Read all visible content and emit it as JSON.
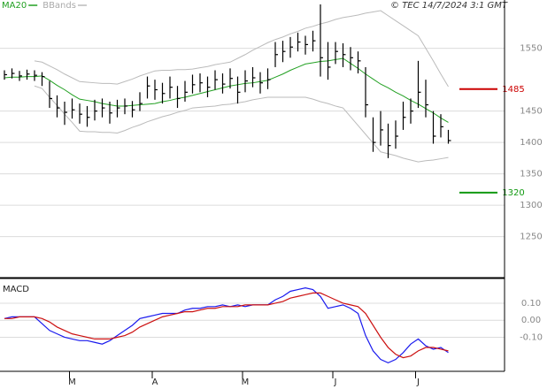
{
  "chart_data": [
    {
      "type": "ohlc",
      "annotation": "© TEC 14/7/2024 3:1 GMT",
      "color": "#000000",
      "high": [
        1515,
        1518,
        1514,
        1516,
        1515,
        1512,
        1498,
        1475,
        1465,
        1470,
        1462,
        1458,
        1468,
        1470,
        1465,
        1468,
        1470,
        1466,
        1480,
        1505,
        1500,
        1495,
        1505,
        1490,
        1498,
        1508,
        1510,
        1505,
        1515,
        1510,
        1518,
        1505,
        1515,
        1520,
        1512,
        1518,
        1560,
        1562,
        1568,
        1575,
        1570,
        1578,
        1620,
        1560,
        1560,
        1558,
        1552,
        1545,
        1520,
        1440,
        1450,
        1430,
        1435,
        1465,
        1470,
        1530,
        1500,
        1450,
        1445,
        1420
      ],
      "low": [
        1500,
        1502,
        1498,
        1500,
        1498,
        1490,
        1455,
        1440,
        1428,
        1438,
        1430,
        1425,
        1435,
        1440,
        1430,
        1440,
        1445,
        1440,
        1450,
        1470,
        1468,
        1462,
        1470,
        1455,
        1465,
        1478,
        1480,
        1472,
        1484,
        1478,
        1486,
        1462,
        1480,
        1488,
        1478,
        1485,
        1520,
        1528,
        1535,
        1545,
        1540,
        1545,
        1505,
        1500,
        1525,
        1520,
        1515,
        1510,
        1440,
        1385,
        1395,
        1375,
        1390,
        1420,
        1430,
        1455,
        1440,
        1398,
        1408,
        1398
      ],
      "close": [
        1508,
        1510,
        1506,
        1509,
        1507,
        1505,
        1470,
        1455,
        1448,
        1452,
        1445,
        1440,
        1450,
        1455,
        1447,
        1455,
        1458,
        1452,
        1462,
        1490,
        1484,
        1478,
        1488,
        1470,
        1480,
        1492,
        1495,
        1488,
        1500,
        1493,
        1502,
        1480,
        1498,
        1503,
        1495,
        1500,
        1540,
        1545,
        1552,
        1560,
        1556,
        1562,
        1535,
        1520,
        1545,
        1540,
        1535,
        1530,
        1460,
        1400,
        1420,
        1395,
        1410,
        1440,
        1450,
        1480,
        1460,
        1410,
        1425,
        1403
      ],
      "series": [
        {
          "name": "MA20",
          "color": "#22a022",
          "values": [
            1503,
            1504,
            1504,
            1505,
            1505,
            1506,
            1499,
            1491,
            1484,
            1476,
            1469,
            1467,
            1465,
            1462,
            1460,
            1458,
            1458,
            1459,
            1460,
            1461,
            1462,
            1465,
            1467,
            1470,
            1472,
            1475,
            1478,
            1481,
            1484,
            1487,
            1490,
            1492,
            1494,
            1495,
            1497,
            1499,
            1504,
            1509,
            1515,
            1520,
            1525,
            1527,
            1529,
            1530,
            1532,
            1534,
            1526,
            1518,
            1509,
            1501,
            1493,
            1487,
            1480,
            1474,
            1467,
            1461,
            1454,
            1447,
            1439,
            1432
          ]
        },
        {
          "name": "BBands",
          "color": "#bbbbbb",
          "upper": [
            null,
            null,
            null,
            null,
            1530,
            1528,
            1522,
            1516,
            1509,
            1503,
            1497,
            1496,
            1495,
            1494,
            1494,
            1493,
            1497,
            1501,
            1506,
            1510,
            1514,
            1515,
            1515,
            1516,
            1516,
            1517,
            1519,
            1521,
            1524,
            1526,
            1528,
            1534,
            1540,
            1547,
            1553,
            1559,
            1564,
            1568,
            1573,
            1577,
            1582,
            1585,
            1589,
            1592,
            1596,
            1599,
            1601,
            1603,
            1606,
            1608,
            1610,
            1602,
            1594,
            1586,
            1578,
            1570,
            1550,
            1530,
            1509,
            1489
          ],
          "lower": [
            null,
            null,
            null,
            null,
            1490,
            1486,
            1472,
            1459,
            1445,
            1432,
            1418,
            1417,
            1417,
            1416,
            1416,
            1415,
            1419,
            1424,
            1428,
            1433,
            1437,
            1441,
            1444,
            1448,
            1451,
            1455,
            1456,
            1457,
            1458,
            1460,
            1461,
            1463,
            1465,
            1468,
            1470,
            1472,
            1472,
            1472,
            1472,
            1472,
            1472,
            1469,
            1465,
            1462,
            1458,
            1455,
            1441,
            1427,
            1413,
            1399,
            1385,
            1382,
            1379,
            1375,
            1372,
            1369,
            1371,
            1372,
            1374,
            1376
          ]
        }
      ],
      "levels": [
        {
          "value": 1485,
          "color": "#cc0000"
        },
        {
          "value": 1320,
          "color": "#119911"
        }
      ],
      "ylim": [
        1186,
        1627
      ],
      "yticks": [
        1250,
        1300,
        1350,
        1400,
        1450,
        1550
      ],
      "grid": true
    },
    {
      "type": "line",
      "title": "MACD",
      "categories": [
        null,
        null,
        null,
        null,
        null,
        null,
        null,
        null,
        null,
        "M",
        null,
        null,
        null,
        null,
        null,
        null,
        null,
        null,
        null,
        null,
        "A",
        null,
        null,
        null,
        null,
        null,
        null,
        null,
        null,
        null,
        null,
        null,
        "M",
        null,
        null,
        null,
        null,
        null,
        null,
        null,
        null,
        null,
        null,
        null,
        "J",
        null,
        null,
        null,
        null,
        null,
        null,
        null,
        null,
        null,
        null,
        "J",
        null,
        null,
        null,
        null
      ],
      "series": [
        {
          "color": "#1a1aee",
          "values": [
            0.01,
            0.02,
            0.02,
            0.02,
            0.02,
            -0.02,
            -0.06,
            -0.08,
            -0.1,
            -0.11,
            -0.12,
            -0.12,
            -0.13,
            -0.14,
            -0.12,
            -0.09,
            -0.06,
            -0.03,
            0.01,
            0.02,
            0.03,
            0.04,
            0.04,
            0.04,
            0.06,
            0.07,
            0.07,
            0.08,
            0.08,
            0.09,
            0.08,
            0.09,
            0.08,
            0.09,
            0.09,
            0.09,
            0.12,
            0.14,
            0.17,
            0.18,
            0.19,
            0.18,
            0.14,
            0.07,
            0.08,
            0.09,
            0.07,
            0.04,
            -0.09,
            -0.18,
            -0.23,
            -0.25,
            -0.23,
            -0.19,
            -0.14,
            -0.11,
            -0.15,
            -0.17,
            -0.16,
            -0.19
          ]
        },
        {
          "color": "#cc1111",
          "values": [
            0.01,
            0.01,
            0.02,
            0.02,
            0.02,
            0.01,
            -0.01,
            -0.04,
            -0.06,
            -0.08,
            -0.09,
            -0.1,
            -0.11,
            -0.11,
            -0.11,
            -0.1,
            -0.09,
            -0.07,
            -0.04,
            -0.02,
            0.0,
            0.02,
            0.03,
            0.04,
            0.05,
            0.05,
            0.06,
            0.07,
            0.07,
            0.08,
            0.08,
            0.08,
            0.09,
            0.09,
            0.09,
            0.09,
            0.1,
            0.11,
            0.13,
            0.14,
            0.15,
            0.16,
            0.16,
            0.14,
            0.12,
            0.1,
            0.09,
            0.08,
            0.04,
            -0.03,
            -0.1,
            -0.16,
            -0.2,
            -0.22,
            -0.21,
            -0.18,
            -0.16,
            -0.16,
            -0.17,
            -0.18
          ]
        }
      ],
      "ylim": [
        -0.3,
        0.24
      ],
      "yticks": [
        {
          "value": 0.1,
          "label": "0.10"
        },
        {
          "value": 0,
          "label": "0.00"
        },
        {
          "value": -0.1,
          "label": "-0.10"
        }
      ],
      "grid": true
    }
  ]
}
